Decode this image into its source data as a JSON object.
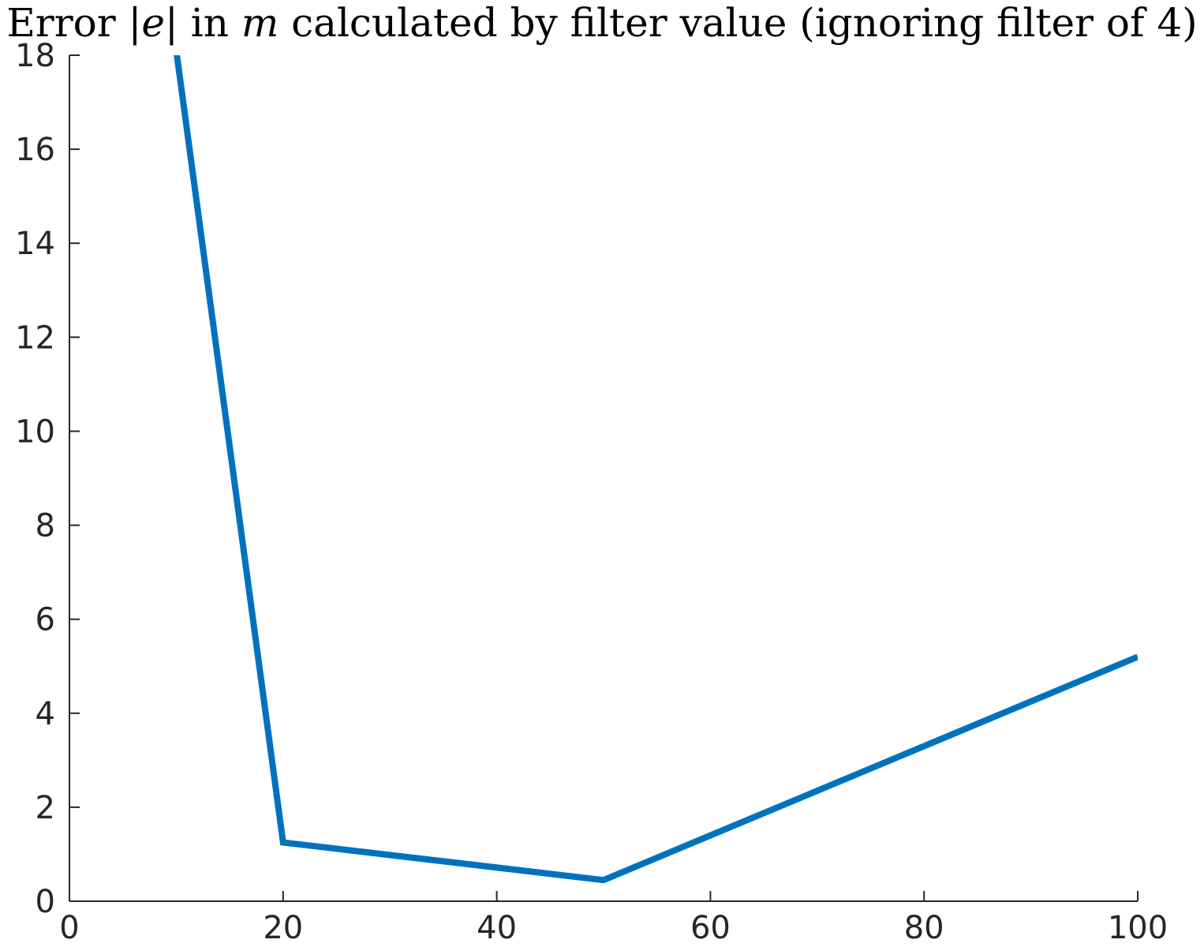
{
  "chart_data": {
    "type": "line",
    "title": "Error |e| in m calculated by filter value (ignoring filter of 4)",
    "title_parts": {
      "prefix": "Error ",
      "abs_open": "|",
      "var_e": "e",
      "abs_close": "|",
      "middle": " in ",
      "var_m": "m",
      "suffix": " calculated by filter value (ignoring filter of 4)"
    },
    "xlabel": "",
    "ylabel": "",
    "xlim": [
      0,
      100
    ],
    "ylim": [
      0,
      18
    ],
    "xticks": [
      0,
      20,
      40,
      60,
      80,
      100
    ],
    "yticks": [
      0,
      2,
      4,
      6,
      8,
      10,
      12,
      14,
      16,
      18
    ],
    "xtick_labels": [
      "0",
      "20",
      "40",
      "60",
      "80",
      "100"
    ],
    "ytick_labels": [
      "0",
      "2",
      "4",
      "6",
      "8",
      "10",
      "12",
      "14",
      "16",
      "18"
    ],
    "grid": false,
    "series": [
      {
        "color": "#0072bd",
        "x": [
          10,
          20,
          50,
          100
        ],
        "y": [
          18.1,
          1.25,
          0.45,
          5.2
        ]
      }
    ]
  }
}
